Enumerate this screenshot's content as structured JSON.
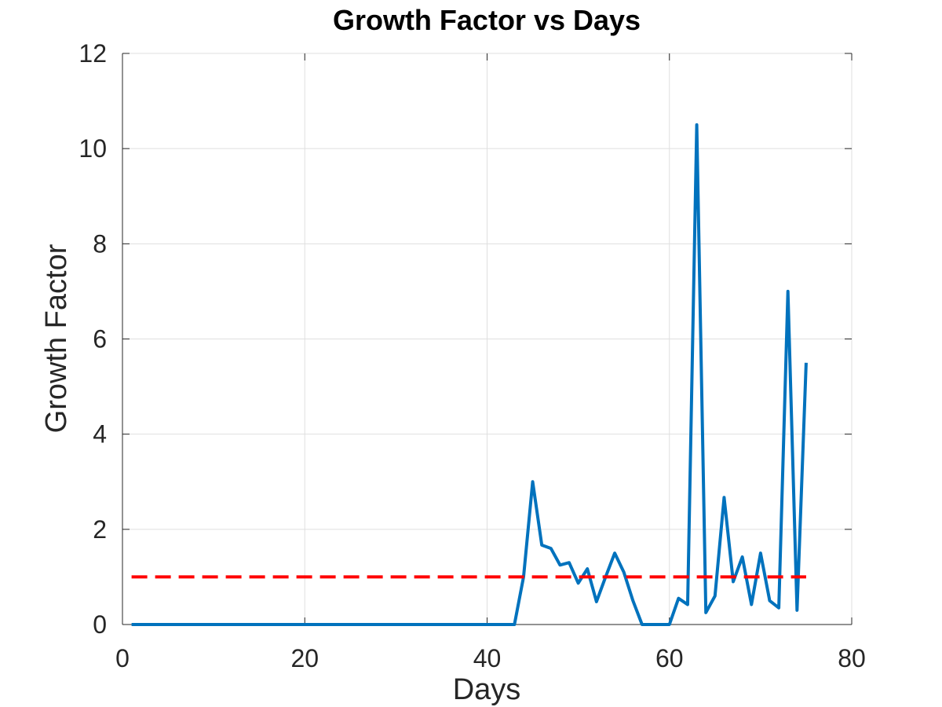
{
  "chart_data": {
    "type": "line",
    "title": "Growth Factor vs Days",
    "xlabel": "Days",
    "ylabel": "Growth Factor",
    "xlim": [
      0,
      80
    ],
    "ylim": [
      0,
      12
    ],
    "xticks": [
      0,
      20,
      40,
      60,
      80
    ],
    "yticks": [
      0,
      2,
      4,
      6,
      8,
      10,
      12
    ],
    "grid": true,
    "legend": "none",
    "series": [
      {
        "color": "#0072bd",
        "style": "solid",
        "x": [
          1,
          2,
          3,
          4,
          5,
          6,
          7,
          8,
          9,
          10,
          11,
          12,
          13,
          14,
          15,
          16,
          17,
          18,
          19,
          20,
          21,
          22,
          23,
          24,
          25,
          26,
          27,
          28,
          29,
          30,
          31,
          32,
          33,
          34,
          35,
          36,
          37,
          38,
          39,
          40,
          41,
          42,
          43,
          44,
          45,
          46,
          47,
          48,
          49,
          50,
          51,
          52,
          53,
          54,
          55,
          56,
          57,
          58,
          59,
          60,
          61,
          62,
          63,
          64,
          65,
          66,
          67,
          68,
          69,
          70,
          71,
          72,
          73,
          74,
          75
        ],
        "values": [
          0,
          0,
          0,
          0,
          0,
          0,
          0,
          0,
          0,
          0,
          0,
          0,
          0,
          0,
          0,
          0,
          0,
          0,
          0,
          0,
          0,
          0,
          0,
          0,
          0,
          0,
          0,
          0,
          0,
          0,
          0,
          0,
          0,
          0,
          0,
          0,
          0,
          0,
          0,
          0,
          0,
          0,
          0,
          1.0,
          3.0,
          1.67,
          1.6,
          1.25,
          1.3,
          0.87,
          1.17,
          0.48,
          1.0,
          1.5,
          1.1,
          0.5,
          0,
          0,
          0,
          0,
          0.55,
          0.42,
          10.5,
          0.25,
          0.6,
          2.67,
          0.9,
          1.42,
          0.42,
          1.5,
          0.5,
          0.35,
          7.0,
          0.3,
          5.5
        ]
      },
      {
        "color": "#ff0000",
        "style": "dashed",
        "x": [
          1,
          75
        ],
        "values": [
          1,
          1
        ]
      }
    ]
  }
}
